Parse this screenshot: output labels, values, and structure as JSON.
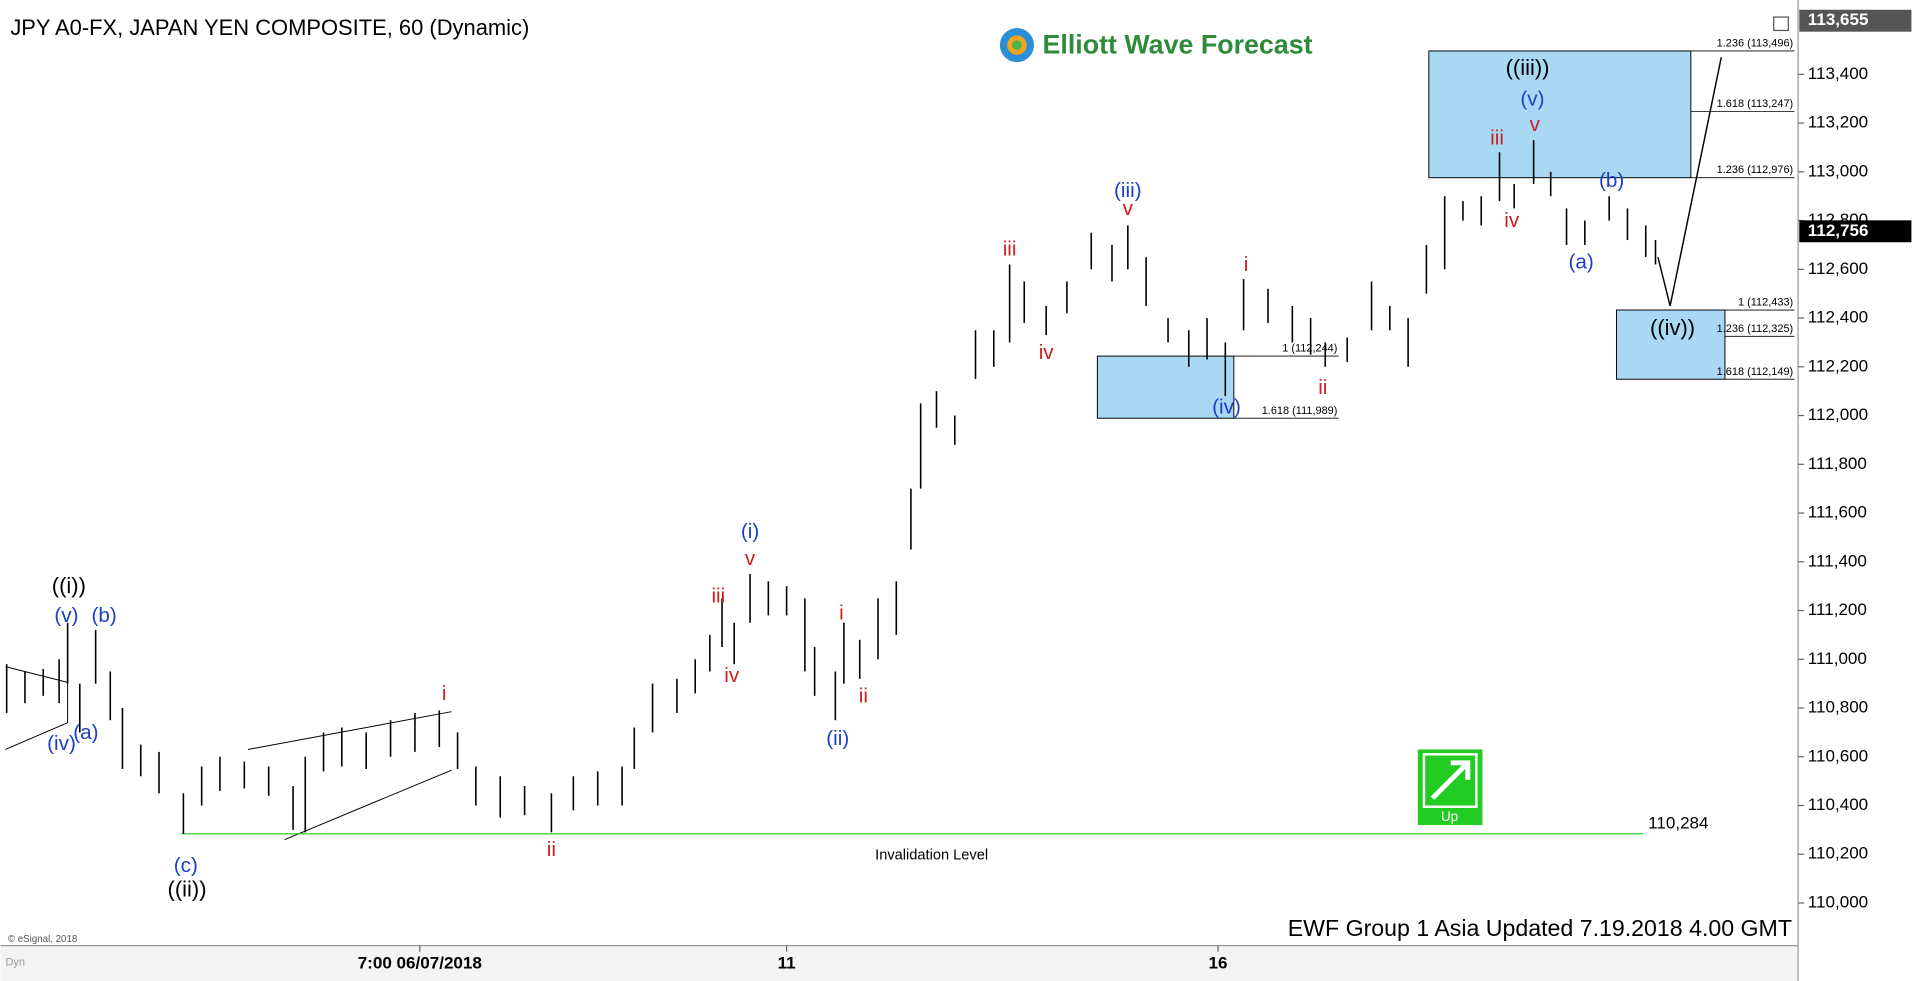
{
  "chart_data": {
    "type": "ohlc",
    "title": "JPY A0-FX, JAPAN YEN COMPOSITE, 60 (Dynamic)",
    "logo": "Elliott Wave Forecast",
    "footer": "EWF Group 1 Asia Updated 7.19.2018 4.00 GMT",
    "copyright": "© eSignal, 2018",
    "corner": "Dyn",
    "signal": "Up",
    "color": "#000000",
    "xlim": [
      0,
      1475
    ],
    "ylim": [
      109830,
      113665
    ],
    "xticks": [
      {
        "value": 344,
        "label": "7:00 06/07/2018"
      },
      {
        "value": 645,
        "label": "11"
      },
      {
        "value": 999,
        "label": "16"
      }
    ],
    "yticks": [
      {
        "value": 110000,
        "label": "110,000"
      },
      {
        "value": 110200,
        "label": "110,200"
      },
      {
        "value": 110400,
        "label": "110,400"
      },
      {
        "value": 110600,
        "label": "110,600"
      },
      {
        "value": 110800,
        "label": "110,800"
      },
      {
        "value": 111000,
        "label": "111,000"
      },
      {
        "value": 111200,
        "label": "111,200"
      },
      {
        "value": 111400,
        "label": "111,400"
      },
      {
        "value": 111600,
        "label": "111,600"
      },
      {
        "value": 111800,
        "label": "111,800"
      },
      {
        "value": 112000,
        "label": "112,000"
      },
      {
        "value": 112200,
        "label": "112,200"
      },
      {
        "value": 112400,
        "label": "112,400"
      },
      {
        "value": 112600,
        "label": "112,600"
      },
      {
        "value": 112800,
        "label": "112,800"
      },
      {
        "value": 113000,
        "label": "113,000"
      },
      {
        "value": 113200,
        "label": "113,200"
      },
      {
        "value": 113400,
        "label": "113,400"
      }
    ],
    "last_price": {
      "value": 112756,
      "label": "112,756"
    },
    "top_price": {
      "value": 113655,
      "label": "113,655"
    },
    "x": [
      5,
      20,
      35,
      48,
      55,
      65,
      78,
      90,
      100,
      115,
      130,
      150,
      165,
      180,
      200,
      220,
      240,
      250,
      265,
      280,
      300,
      320,
      340,
      360,
      375,
      390,
      410,
      430,
      452,
      470,
      490,
      510,
      520,
      535,
      555,
      570,
      582,
      592,
      602,
      615,
      630,
      645,
      660,
      668,
      685,
      692,
      705,
      720,
      735,
      747,
      755,
      768,
      783,
      800,
      815,
      828,
      840,
      858,
      875,
      895,
      912,
      925,
      940,
      958,
      975,
      990,
      1005,
      1020,
      1040,
      1060,
      1075,
      1087,
      1105,
      1125,
      1140,
      1155,
      1170,
      1185,
      1200,
      1215,
      1230,
      1242,
      1258,
      1272,
      1285,
      1300,
      1320,
      1335,
      1350,
      1358
    ],
    "high": [
      110980,
      110950,
      110960,
      111000,
      111150,
      110900,
      111120,
      110950,
      110800,
      110650,
      110620,
      110450,
      110560,
      110600,
      110580,
      110560,
      110480,
      110600,
      110700,
      110720,
      110700,
      110750,
      110780,
      110790,
      110700,
      110560,
      110520,
      110480,
      110450,
      110520,
      110540,
      110560,
      110720,
      110900,
      110920,
      111000,
      111100,
      111250,
      111150,
      111350,
      111320,
      111300,
      111250,
      111050,
      110950,
      111150,
      111080,
      111250,
      111320,
      111700,
      112050,
      112100,
      112000,
      112350,
      112350,
      112620,
      112550,
      112450,
      112550,
      112750,
      112700,
      112780,
      112650,
      112400,
      112350,
      112400,
      112300,
      112560,
      112520,
      112450,
      112400,
      112300,
      112320,
      112550,
      112450,
      112400,
      112700,
      112900,
      112880,
      112900,
      113080,
      112950,
      113130,
      113000,
      112850,
      112800,
      112900,
      112850,
      112780,
      112720
    ],
    "low": [
      110780,
      110820,
      110850,
      110820,
      110900,
      110700,
      110900,
      110750,
      110550,
      110520,
      110450,
      110284,
      110400,
      110460,
      110470,
      110440,
      110300,
      110290,
      110540,
      110560,
      110550,
      110600,
      110620,
      110640,
      110550,
      110400,
      110350,
      110360,
      110290,
      110380,
      110400,
      110400,
      110550,
      110700,
      110780,
      110860,
      110950,
      111050,
      110980,
      111150,
      111180,
      111180,
      110950,
      110850,
      110750,
      110900,
      110920,
      111000,
      111100,
      111450,
      111700,
      111950,
      111880,
      112150,
      112200,
      112300,
      112380,
      112330,
      112420,
      112600,
      112550,
      112600,
      112450,
      112300,
      112200,
      112230,
      112080,
      112350,
      112380,
      112300,
      112250,
      112200,
      112220,
      112350,
      112350,
      112200,
      112500,
      112600,
      112800,
      112780,
      112880,
      112850,
      112950,
      112900,
      112700,
      112700,
      112800,
      112720,
      112650,
      112620
    ],
    "invalidation": {
      "value": 110284,
      "label": "110,284",
      "text": "Invalidation Level",
      "x": [
        148,
        1348
      ],
      "color": "#33cc33"
    },
    "projection": {
      "x": [
        1360,
        1370,
        1412
      ],
      "y": [
        112650,
        112450,
        113470
      ],
      "color": "#000000"
    },
    "zones": [
      {
        "x": [
          1172,
          1387
        ],
        "color": "#a9d8f5",
        "fibs": [
          {
            "value": 113496,
            "label": "1.236 (113,496)"
          },
          {
            "value": 113247,
            "label": "1.618 (113,247)"
          },
          {
            "value": 112976,
            "label": "1.236 (112,976)"
          }
        ]
      },
      {
        "x": [
          900,
          1012
        ],
        "color": "#a9d8f5",
        "fibs": [
          {
            "value": 112244,
            "label": "1 (112,244)"
          },
          {
            "value": 111989,
            "label": "1.618 (111,989)"
          }
        ]
      },
      {
        "x": [
          1326,
          1415
        ],
        "color": "#a9d8f5",
        "fibs": [
          {
            "value": 112433,
            "label": "1 (112,433)"
          },
          {
            "value": 112325,
            "label": "1.236 (112,325)"
          },
          {
            "value": 112149,
            "label": "1.618 (112,149)"
          }
        ]
      }
    ],
    "waves": [
      {
        "text": "((i))",
        "x": 56,
        "y": 111295,
        "color": "#000000"
      },
      {
        "text": "(v)",
        "x": 54,
        "y": 111175,
        "color": "#1a3fc4"
      },
      {
        "text": "(b)",
        "x": 85,
        "y": 111175,
        "color": "#1a3fc4"
      },
      {
        "text": "(iv)",
        "x": 50,
        "y": 110650,
        "color": "#1a3fc4"
      },
      {
        "text": "(a)",
        "x": 70,
        "y": 110695,
        "color": "#1a3fc4"
      },
      {
        "text": "(c)",
        "x": 152,
        "y": 110150,
        "color": "#1a3fc4"
      },
      {
        "text": "((ii))",
        "x": 153,
        "y": 110050,
        "color": "#000000"
      },
      {
        "text": "i",
        "x": 364,
        "y": 110855,
        "color": "#cc1f1f"
      },
      {
        "text": "ii",
        "x": 452,
        "y": 110215,
        "color": "#cc1f1f"
      },
      {
        "text": "iii",
        "x": 589,
        "y": 111255,
        "color": "#cc1f1f"
      },
      {
        "text": "iv",
        "x": 600,
        "y": 110930,
        "color": "#cc1f1f"
      },
      {
        "text": "(i)",
        "x": 615,
        "y": 111520,
        "color": "#1a3fc4"
      },
      {
        "text": "v",
        "x": 615,
        "y": 111410,
        "color": "#cc1f1f"
      },
      {
        "text": "i",
        "x": 690,
        "y": 111185,
        "color": "#cc1f1f"
      },
      {
        "text": "ii",
        "x": 708,
        "y": 110845,
        "color": "#cc1f1f"
      },
      {
        "text": "(ii)",
        "x": 687,
        "y": 110670,
        "color": "#1a3fc4"
      },
      {
        "text": "iii",
        "x": 828,
        "y": 112680,
        "color": "#cc1f1f"
      },
      {
        "text": "iv",
        "x": 858,
        "y": 112255,
        "color": "#cc1f1f"
      },
      {
        "text": "(iii)",
        "x": 925,
        "y": 112920,
        "color": "#1a3fc4"
      },
      {
        "text": "v",
        "x": 925,
        "y": 112845,
        "color": "#cc1f1f"
      },
      {
        "text": "(iv)",
        "x": 1006,
        "y": 112030,
        "color": "#1a3fc4"
      },
      {
        "text": "i",
        "x": 1022,
        "y": 112615,
        "color": "#cc1f1f"
      },
      {
        "text": "ii",
        "x": 1085,
        "y": 112110,
        "color": "#cc1f1f"
      },
      {
        "text": "iii",
        "x": 1228,
        "y": 113135,
        "color": "#cc1f1f"
      },
      {
        "text": "iv",
        "x": 1240,
        "y": 112795,
        "color": "#cc1f1f"
      },
      {
        "text": "((iii))",
        "x": 1253,
        "y": 113420,
        "color": "#000000"
      },
      {
        "text": "(v)",
        "x": 1257,
        "y": 113295,
        "color": "#1a3fc4"
      },
      {
        "text": "v",
        "x": 1259,
        "y": 113190,
        "color": "#cc1f1f"
      },
      {
        "text": "(a)",
        "x": 1297,
        "y": 112625,
        "color": "#1a3fc4"
      },
      {
        "text": "(b)",
        "x": 1322,
        "y": 112960,
        "color": "#1a3fc4"
      },
      {
        "text": "((iv))",
        "x": 1372,
        "y": 112355,
        "color": "#000000"
      }
    ]
  }
}
